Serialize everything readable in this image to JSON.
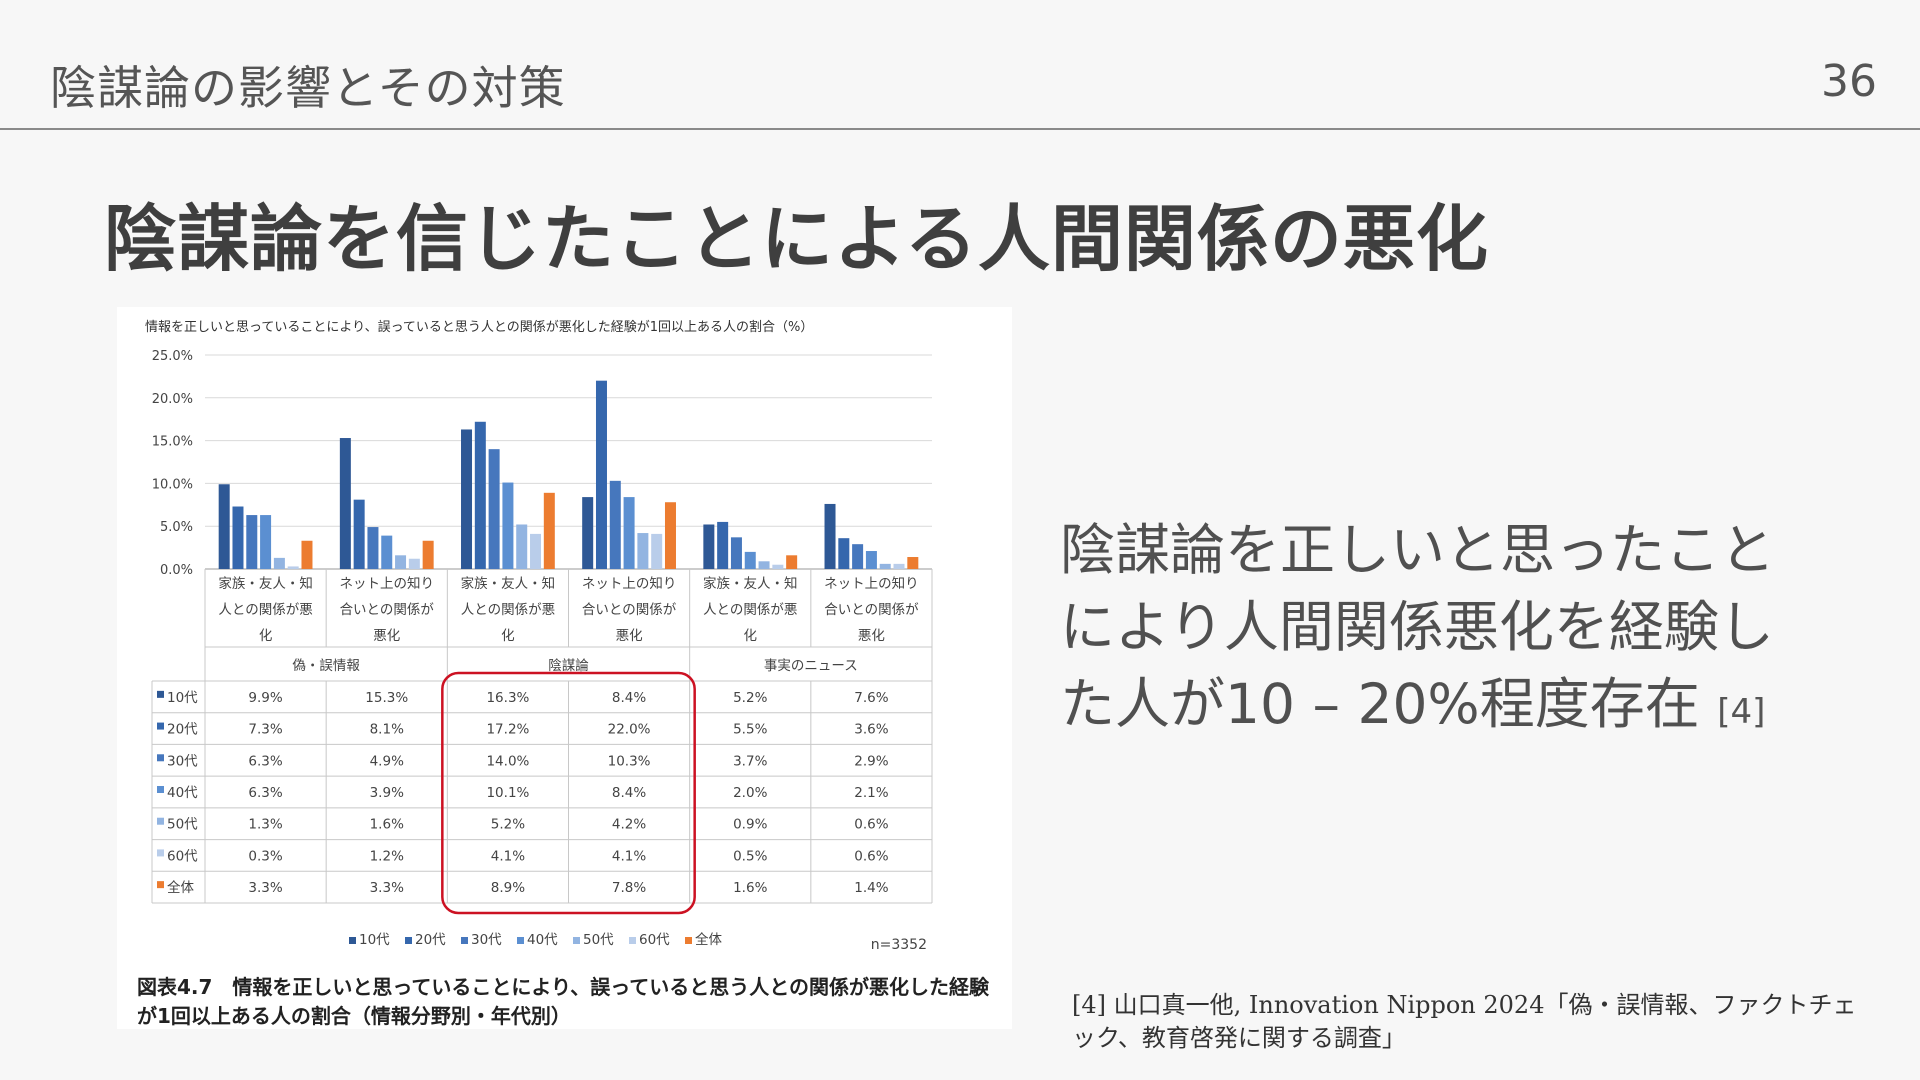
{
  "header": {
    "title": "陰謀論の影響とその対策",
    "page_number": "36"
  },
  "slide_title": "陰謀論を信じたことによる人間関係の悪化",
  "body": {
    "text": "陰謀論を正しいと思ったことにより人間関係悪化を経験した人が10 – 20%程度存在",
    "ref": "[4]"
  },
  "footnote": "[4] 山口真一他, Innovation Nippon 2024「偽・誤情報、ファクトチェック、教育啓発に関する調査」",
  "figure": {
    "caption": "図表4.7　情報を正しいと思っていることにより、誤っていると思う人との関係が悪化した経験が1回以上ある人の割合（情報分野別・年代別）"
  },
  "chart_data": {
    "type": "bar",
    "title": "情報を正しいと思っていることにより、誤っていると思う人との関係が悪化した経験が1回以上ある人の割合（%）",
    "sample_size": "n=3352",
    "ylim": [
      0,
      25
    ],
    "y_ticks": [
      "0.0%",
      "5.0%",
      "10.0%",
      "15.0%",
      "20.0%",
      "25.0%"
    ],
    "grid": true,
    "legend_position": "bottom",
    "group_labels": [
      "偽・誤情報",
      "陰謀論",
      "事実のニュース"
    ],
    "categories": [
      "家族・友人・知人との関係が悪化",
      "ネット上の知り合いとの関係が悪化",
      "家族・友人・知人との関係が悪化",
      "ネット上の知り合いとの関係が悪化",
      "家族・友人・知人との関係が悪化",
      "ネット上の知り合いとの関係が悪化"
    ],
    "series": [
      {
        "name": "10代",
        "color": "#2e5895",
        "values": [
          9.9,
          15.3,
          16.3,
          8.4,
          5.2,
          7.6
        ],
        "labels": [
          "9.9%",
          "15.3%",
          "16.3%",
          "8.4%",
          "5.2%",
          "7.6%"
        ]
      },
      {
        "name": "20代",
        "color": "#3567ad",
        "values": [
          7.3,
          8.1,
          17.2,
          22.0,
          5.5,
          3.6
        ],
        "labels": [
          "7.3%",
          "8.1%",
          "17.2%",
          "22.0%",
          "5.5%",
          "3.6%"
        ]
      },
      {
        "name": "30代",
        "color": "#4677bd",
        "values": [
          6.3,
          4.9,
          14.0,
          10.3,
          3.7,
          2.9
        ],
        "labels": [
          "6.3%",
          "4.9%",
          "14.0%",
          "10.3%",
          "3.7%",
          "2.9%"
        ]
      },
      {
        "name": "40代",
        "color": "#5b8fd1",
        "values": [
          6.3,
          3.9,
          10.1,
          8.4,
          2.0,
          2.1
        ],
        "labels": [
          "6.3%",
          "3.9%",
          "10.1%",
          "8.4%",
          "2.0%",
          "2.1%"
        ]
      },
      {
        "name": "50代",
        "color": "#92b4e1",
        "values": [
          1.3,
          1.6,
          5.2,
          4.2,
          0.9,
          0.6
        ],
        "labels": [
          "1.3%",
          "1.6%",
          "5.2%",
          "4.2%",
          "0.9%",
          "0.6%"
        ]
      },
      {
        "name": "60代",
        "color": "#b9cdea",
        "values": [
          0.3,
          1.2,
          4.1,
          4.1,
          0.5,
          0.6
        ],
        "labels": [
          "0.3%",
          "1.2%",
          "4.1%",
          "4.1%",
          "0.5%",
          "0.6%"
        ]
      },
      {
        "name": "全体",
        "color": "#ec7c30",
        "values": [
          3.3,
          3.3,
          8.9,
          7.8,
          1.6,
          1.4
        ],
        "labels": [
          "3.3%",
          "3.3%",
          "8.9%",
          "7.8%",
          "1.6%",
          "1.4%"
        ]
      }
    ],
    "highlight_color": "#cc1122"
  }
}
